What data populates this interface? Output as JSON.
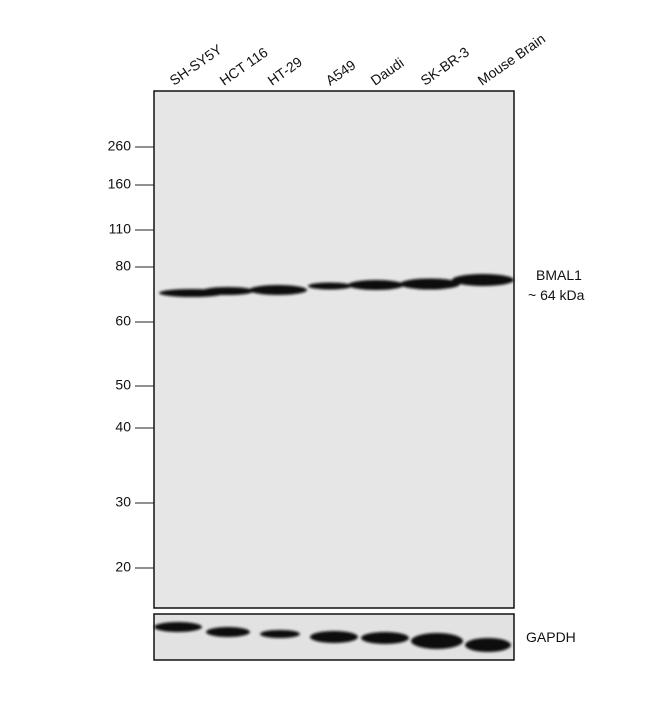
{
  "lanes": [
    "SH-SY5Y",
    "HCT 116",
    "HT-29",
    "A549",
    "Daudi",
    "SK-BR-3",
    "Mouse Brain"
  ],
  "markers": [
    "260",
    "160",
    "110",
    "80",
    "60",
    "50",
    "40",
    "30",
    "20"
  ],
  "target": {
    "name": "BMAL1",
    "size": "~ 64 kDa"
  },
  "loading_control": "GAPDH"
}
